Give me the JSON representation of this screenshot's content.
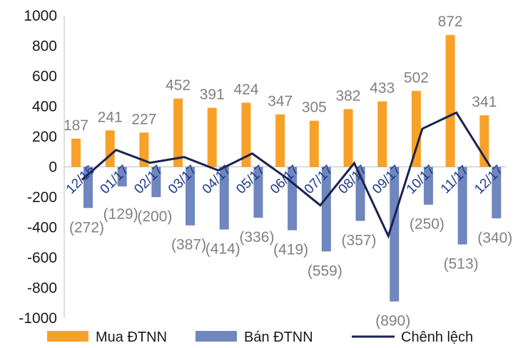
{
  "chart_data": {
    "type": "bar",
    "categories": [
      "12/16",
      "01/17",
      "02/17",
      "03/17",
      "04/17",
      "05/17",
      "06/17",
      "07/17",
      "08/17",
      "09/17",
      "10/17",
      "11/17",
      "12/17"
    ],
    "series": [
      {
        "name": "Mua ĐTNN",
        "kind": "bar",
        "color": "#F7A129",
        "values": [
          187,
          241,
          227,
          452,
          391,
          424,
          347,
          305,
          382,
          433,
          502,
          872,
          341
        ],
        "labels": [
          "187",
          "241",
          "227",
          "452",
          "391",
          "424",
          "347",
          "305",
          "382",
          "433",
          "502",
          "872",
          "341"
        ]
      },
      {
        "name": "Bán ĐTNN",
        "kind": "bar",
        "color": "#6F86BE",
        "values": [
          -272,
          -129,
          -200,
          -387,
          -414,
          -336,
          -419,
          -559,
          -357,
          -890,
          -250,
          -513,
          -340
        ],
        "labels": [
          "(272)",
          "(129)",
          "(200)",
          "(387)",
          "(414)",
          "(336)",
          "(419)",
          "(559)",
          "(357)",
          "(890)",
          "(250)",
          "(513)",
          "(340)"
        ]
      },
      {
        "name": "Chênh lệch",
        "kind": "line",
        "color": "#1B2350",
        "values": [
          -85,
          112,
          27,
          65,
          -23,
          88,
          -72,
          -254,
          25,
          -457,
          252,
          359,
          1
        ]
      }
    ],
    "yticks": [
      "1000",
      "800",
      "600",
      "400",
      "200",
      "0",
      "-200",
      "-400",
      "-600",
      "-800",
      "-1000"
    ],
    "ylim": [
      -1000,
      1000
    ],
    "legend_position": "bottom"
  }
}
